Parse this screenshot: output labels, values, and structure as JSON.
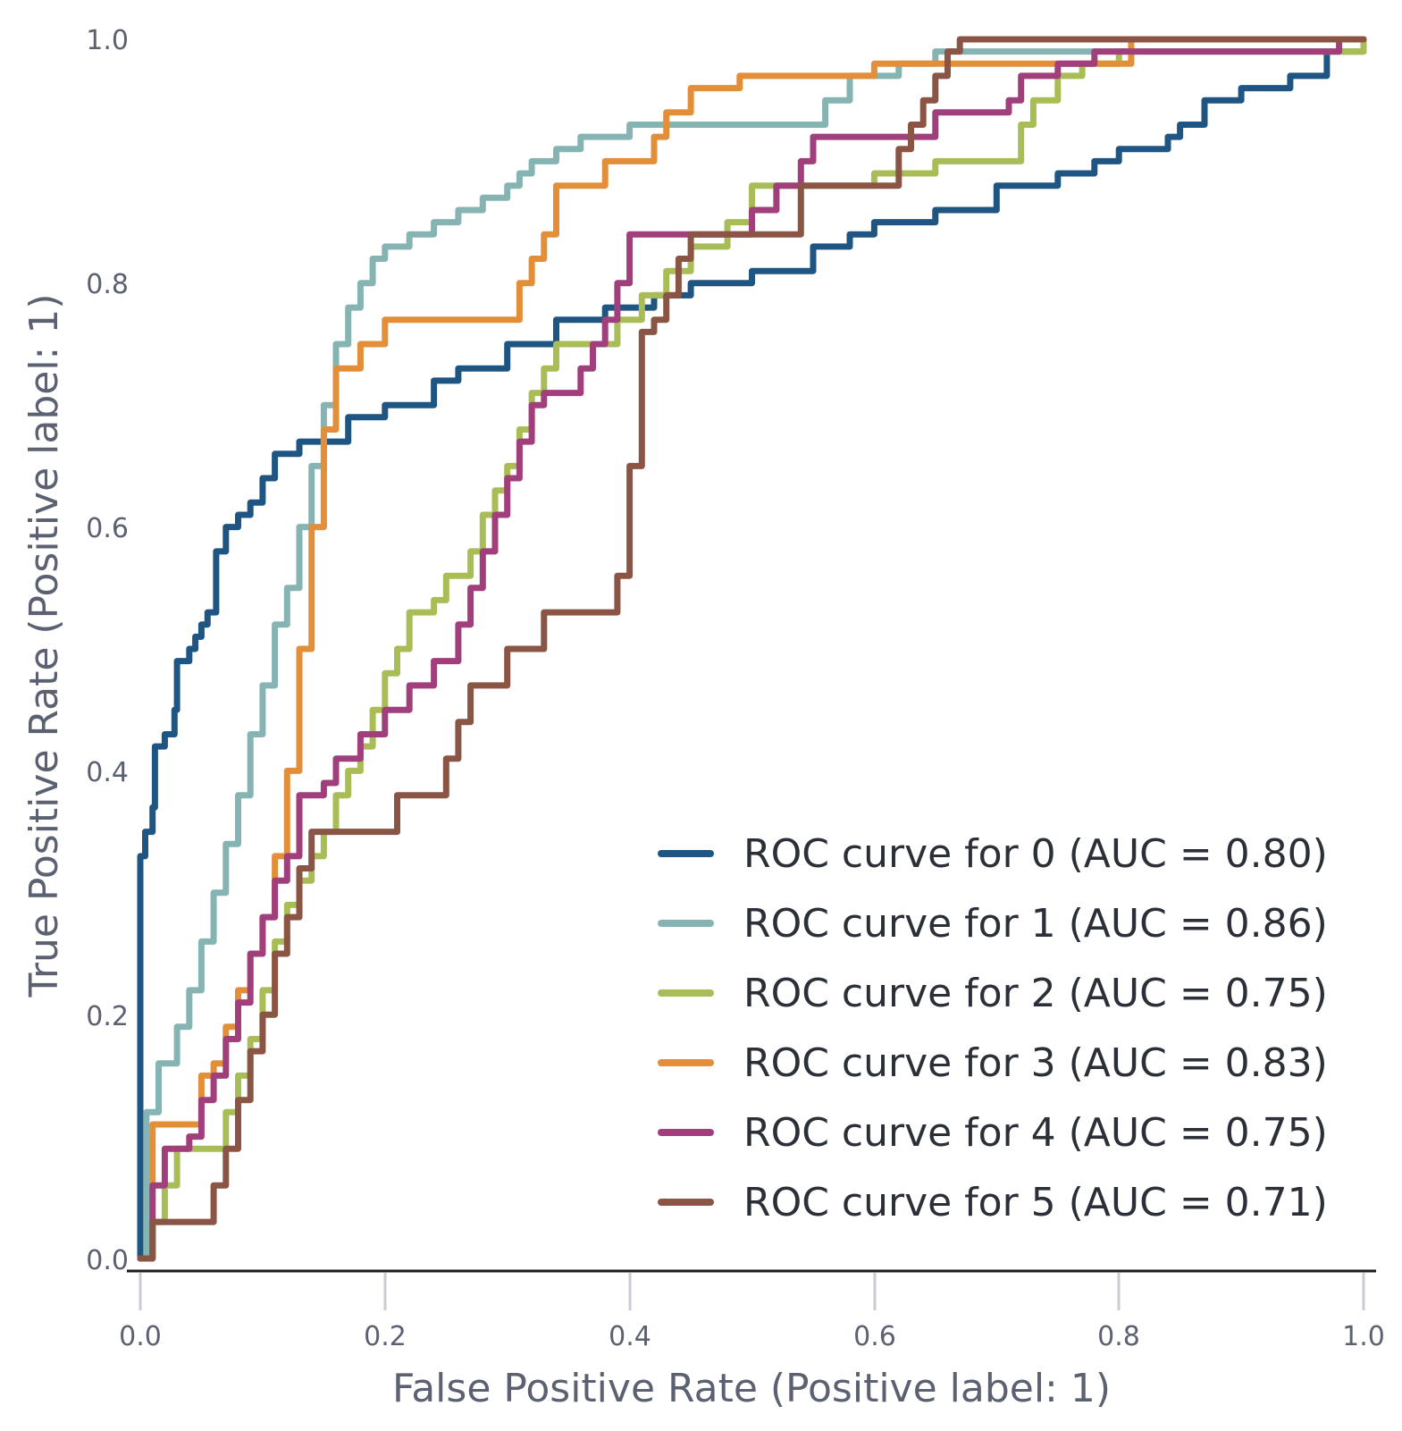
{
  "chart_data": {
    "type": "line",
    "title": "",
    "xlabel": "False Positive Rate (Positive label: 1)",
    "ylabel": "True Positive Rate (Positive label: 1)",
    "xlim": [
      0,
      1
    ],
    "ylim": [
      0,
      1
    ],
    "x_ticks": [
      "0.0",
      "0.2",
      "0.4",
      "0.6",
      "0.8",
      "1.0"
    ],
    "y_ticks": [
      "0.0",
      "0.2",
      "0.4",
      "0.6",
      "0.8",
      "1.0"
    ],
    "grid": false,
    "legend_position": "bottom-right",
    "series": [
      {
        "name": "ROC curve for 0 (AUC = 0.80)",
        "color": "#1f5582",
        "points": [
          [
            0,
            0
          ],
          [
            0,
            0.33
          ],
          [
            0.004,
            0.35
          ],
          [
            0.01,
            0.37
          ],
          [
            0.012,
            0.42
          ],
          [
            0.02,
            0.43
          ],
          [
            0.028,
            0.45
          ],
          [
            0.03,
            0.49
          ],
          [
            0.04,
            0.5
          ],
          [
            0.045,
            0.51
          ],
          [
            0.05,
            0.52
          ],
          [
            0.055,
            0.53
          ],
          [
            0.06,
            0.53
          ],
          [
            0.062,
            0.58
          ],
          [
            0.07,
            0.6
          ],
          [
            0.08,
            0.61
          ],
          [
            0.09,
            0.62
          ],
          [
            0.1,
            0.64
          ],
          [
            0.11,
            0.66
          ],
          [
            0.12,
            0.66
          ],
          [
            0.13,
            0.67
          ],
          [
            0.15,
            0.67
          ],
          [
            0.17,
            0.69
          ],
          [
            0.2,
            0.7
          ],
          [
            0.24,
            0.72
          ],
          [
            0.26,
            0.73
          ],
          [
            0.3,
            0.75
          ],
          [
            0.34,
            0.77
          ],
          [
            0.38,
            0.78
          ],
          [
            0.42,
            0.79
          ],
          [
            0.45,
            0.8
          ],
          [
            0.5,
            0.81
          ],
          [
            0.55,
            0.83
          ],
          [
            0.58,
            0.84
          ],
          [
            0.6,
            0.85
          ],
          [
            0.65,
            0.86
          ],
          [
            0.7,
            0.88
          ],
          [
            0.75,
            0.89
          ],
          [
            0.78,
            0.9
          ],
          [
            0.8,
            0.91
          ],
          [
            0.84,
            0.92
          ],
          [
            0.85,
            0.93
          ],
          [
            0.87,
            0.95
          ],
          [
            0.9,
            0.96
          ],
          [
            0.94,
            0.97
          ],
          [
            0.97,
            0.99
          ],
          [
            1,
            1
          ]
        ]
      },
      {
        "name": "ROC curve for 1 (AUC = 0.86)",
        "color": "#86b4b2",
        "points": [
          [
            0,
            0
          ],
          [
            0.005,
            0.12
          ],
          [
            0.015,
            0.16
          ],
          [
            0.03,
            0.19
          ],
          [
            0.04,
            0.22
          ],
          [
            0.05,
            0.26
          ],
          [
            0.06,
            0.3
          ],
          [
            0.07,
            0.34
          ],
          [
            0.08,
            0.38
          ],
          [
            0.09,
            0.43
          ],
          [
            0.1,
            0.47
          ],
          [
            0.11,
            0.52
          ],
          [
            0.12,
            0.55
          ],
          [
            0.13,
            0.6
          ],
          [
            0.14,
            0.65
          ],
          [
            0.15,
            0.7
          ],
          [
            0.16,
            0.75
          ],
          [
            0.17,
            0.78
          ],
          [
            0.18,
            0.8
          ],
          [
            0.19,
            0.82
          ],
          [
            0.2,
            0.83
          ],
          [
            0.22,
            0.84
          ],
          [
            0.24,
            0.85
          ],
          [
            0.26,
            0.86
          ],
          [
            0.28,
            0.87
          ],
          [
            0.3,
            0.88
          ],
          [
            0.31,
            0.89
          ],
          [
            0.32,
            0.9
          ],
          [
            0.34,
            0.91
          ],
          [
            0.36,
            0.92
          ],
          [
            0.4,
            0.93
          ],
          [
            0.5,
            0.93
          ],
          [
            0.56,
            0.95
          ],
          [
            0.58,
            0.97
          ],
          [
            0.62,
            0.98
          ],
          [
            0.65,
            0.99
          ],
          [
            0.91,
            0.99
          ],
          [
            1,
            1
          ]
        ]
      },
      {
        "name": "ROC curve for 2 (AUC = 0.75)",
        "color": "#a8bd55",
        "points": [
          [
            0,
            0
          ],
          [
            0.01,
            0.03
          ],
          [
            0.02,
            0.06
          ],
          [
            0.03,
            0.09
          ],
          [
            0.05,
            0.09
          ],
          [
            0.07,
            0.12
          ],
          [
            0.08,
            0.15
          ],
          [
            0.09,
            0.18
          ],
          [
            0.1,
            0.22
          ],
          [
            0.11,
            0.26
          ],
          [
            0.12,
            0.29
          ],
          [
            0.13,
            0.31
          ],
          [
            0.14,
            0.33
          ],
          [
            0.15,
            0.35
          ],
          [
            0.16,
            0.38
          ],
          [
            0.17,
            0.4
          ],
          [
            0.18,
            0.42
          ],
          [
            0.19,
            0.45
          ],
          [
            0.2,
            0.48
          ],
          [
            0.21,
            0.5
          ],
          [
            0.22,
            0.53
          ],
          [
            0.24,
            0.54
          ],
          [
            0.25,
            0.56
          ],
          [
            0.27,
            0.58
          ],
          [
            0.28,
            0.61
          ],
          [
            0.29,
            0.63
          ],
          [
            0.3,
            0.65
          ],
          [
            0.31,
            0.68
          ],
          [
            0.32,
            0.71
          ],
          [
            0.33,
            0.73
          ],
          [
            0.34,
            0.75
          ],
          [
            0.37,
            0.75
          ],
          [
            0.39,
            0.77
          ],
          [
            0.41,
            0.79
          ],
          [
            0.43,
            0.81
          ],
          [
            0.45,
            0.83
          ],
          [
            0.48,
            0.85
          ],
          [
            0.5,
            0.88
          ],
          [
            0.6,
            0.89
          ],
          [
            0.65,
            0.9
          ],
          [
            0.7,
            0.9
          ],
          [
            0.72,
            0.93
          ],
          [
            0.73,
            0.95
          ],
          [
            0.75,
            0.97
          ],
          [
            0.77,
            0.98
          ],
          [
            0.8,
            0.99
          ],
          [
            1,
            1
          ]
        ]
      },
      {
        "name": "ROC curve for 3 (AUC = 0.83)",
        "color": "#e38f3a",
        "points": [
          [
            0,
            0
          ],
          [
            0.01,
            0.11
          ],
          [
            0.04,
            0.11
          ],
          [
            0.05,
            0.15
          ],
          [
            0.06,
            0.16
          ],
          [
            0.07,
            0.19
          ],
          [
            0.08,
            0.22
          ],
          [
            0.09,
            0.25
          ],
          [
            0.1,
            0.28
          ],
          [
            0.11,
            0.33
          ],
          [
            0.12,
            0.4
          ],
          [
            0.13,
            0.5
          ],
          [
            0.14,
            0.6
          ],
          [
            0.15,
            0.68
          ],
          [
            0.16,
            0.73
          ],
          [
            0.18,
            0.75
          ],
          [
            0.2,
            0.77
          ],
          [
            0.3,
            0.77
          ],
          [
            0.31,
            0.8
          ],
          [
            0.32,
            0.82
          ],
          [
            0.33,
            0.84
          ],
          [
            0.34,
            0.88
          ],
          [
            0.36,
            0.88
          ],
          [
            0.38,
            0.9
          ],
          [
            0.42,
            0.92
          ],
          [
            0.43,
            0.94
          ],
          [
            0.45,
            0.96
          ],
          [
            0.49,
            0.97
          ],
          [
            0.6,
            0.98
          ],
          [
            0.8,
            0.98
          ],
          [
            0.81,
            1
          ],
          [
            1,
            1
          ]
        ]
      },
      {
        "name": "ROC curve for 4 (AUC = 0.75)",
        "color": "#a13f7c",
        "points": [
          [
            0,
            0
          ],
          [
            0.01,
            0.06
          ],
          [
            0.02,
            0.09
          ],
          [
            0.04,
            0.1
          ],
          [
            0.05,
            0.13
          ],
          [
            0.06,
            0.15
          ],
          [
            0.07,
            0.18
          ],
          [
            0.08,
            0.21
          ],
          [
            0.09,
            0.25
          ],
          [
            0.1,
            0.28
          ],
          [
            0.11,
            0.31
          ],
          [
            0.12,
            0.33
          ],
          [
            0.13,
            0.38
          ],
          [
            0.15,
            0.39
          ],
          [
            0.16,
            0.41
          ],
          [
            0.18,
            0.43
          ],
          [
            0.2,
            0.45
          ],
          [
            0.22,
            0.47
          ],
          [
            0.24,
            0.49
          ],
          [
            0.26,
            0.52
          ],
          [
            0.27,
            0.55
          ],
          [
            0.28,
            0.58
          ],
          [
            0.29,
            0.61
          ],
          [
            0.3,
            0.64
          ],
          [
            0.31,
            0.67
          ],
          [
            0.32,
            0.7
          ],
          [
            0.33,
            0.71
          ],
          [
            0.35,
            0.71
          ],
          [
            0.36,
            0.73
          ],
          [
            0.37,
            0.75
          ],
          [
            0.38,
            0.77
          ],
          [
            0.39,
            0.8
          ],
          [
            0.4,
            0.84
          ],
          [
            0.47,
            0.84
          ],
          [
            0.5,
            0.86
          ],
          [
            0.52,
            0.88
          ],
          [
            0.54,
            0.9
          ],
          [
            0.55,
            0.92
          ],
          [
            0.64,
            0.92
          ],
          [
            0.65,
            0.94
          ],
          [
            0.7,
            0.94
          ],
          [
            0.71,
            0.95
          ],
          [
            0.72,
            0.97
          ],
          [
            0.75,
            0.98
          ],
          [
            0.77,
            0.98
          ],
          [
            0.78,
            0.99
          ],
          [
            0.97,
            0.99
          ],
          [
            0.98,
            1
          ],
          [
            1,
            1
          ]
        ]
      },
      {
        "name": "ROC curve for 5 (AUC = 0.71)",
        "color": "#8a5545",
        "points": [
          [
            0,
            0
          ],
          [
            0.01,
            0.03
          ],
          [
            0.05,
            0.03
          ],
          [
            0.06,
            0.06
          ],
          [
            0.07,
            0.09
          ],
          [
            0.08,
            0.13
          ],
          [
            0.09,
            0.17
          ],
          [
            0.1,
            0.2
          ],
          [
            0.11,
            0.25
          ],
          [
            0.12,
            0.28
          ],
          [
            0.13,
            0.32
          ],
          [
            0.14,
            0.35
          ],
          [
            0.2,
            0.35
          ],
          [
            0.21,
            0.38
          ],
          [
            0.24,
            0.38
          ],
          [
            0.25,
            0.41
          ],
          [
            0.26,
            0.44
          ],
          [
            0.27,
            0.47
          ],
          [
            0.29,
            0.47
          ],
          [
            0.3,
            0.5
          ],
          [
            0.32,
            0.5
          ],
          [
            0.33,
            0.53
          ],
          [
            0.38,
            0.53
          ],
          [
            0.39,
            0.56
          ],
          [
            0.4,
            0.65
          ],
          [
            0.41,
            0.76
          ],
          [
            0.42,
            0.77
          ],
          [
            0.43,
            0.79
          ],
          [
            0.44,
            0.82
          ],
          [
            0.45,
            0.84
          ],
          [
            0.52,
            0.84
          ],
          [
            0.54,
            0.88
          ],
          [
            0.6,
            0.88
          ],
          [
            0.62,
            0.91
          ],
          [
            0.63,
            0.93
          ],
          [
            0.64,
            0.95
          ],
          [
            0.65,
            0.97
          ],
          [
            0.66,
            0.99
          ],
          [
            0.67,
            1
          ],
          [
            1,
            1
          ]
        ]
      }
    ]
  }
}
